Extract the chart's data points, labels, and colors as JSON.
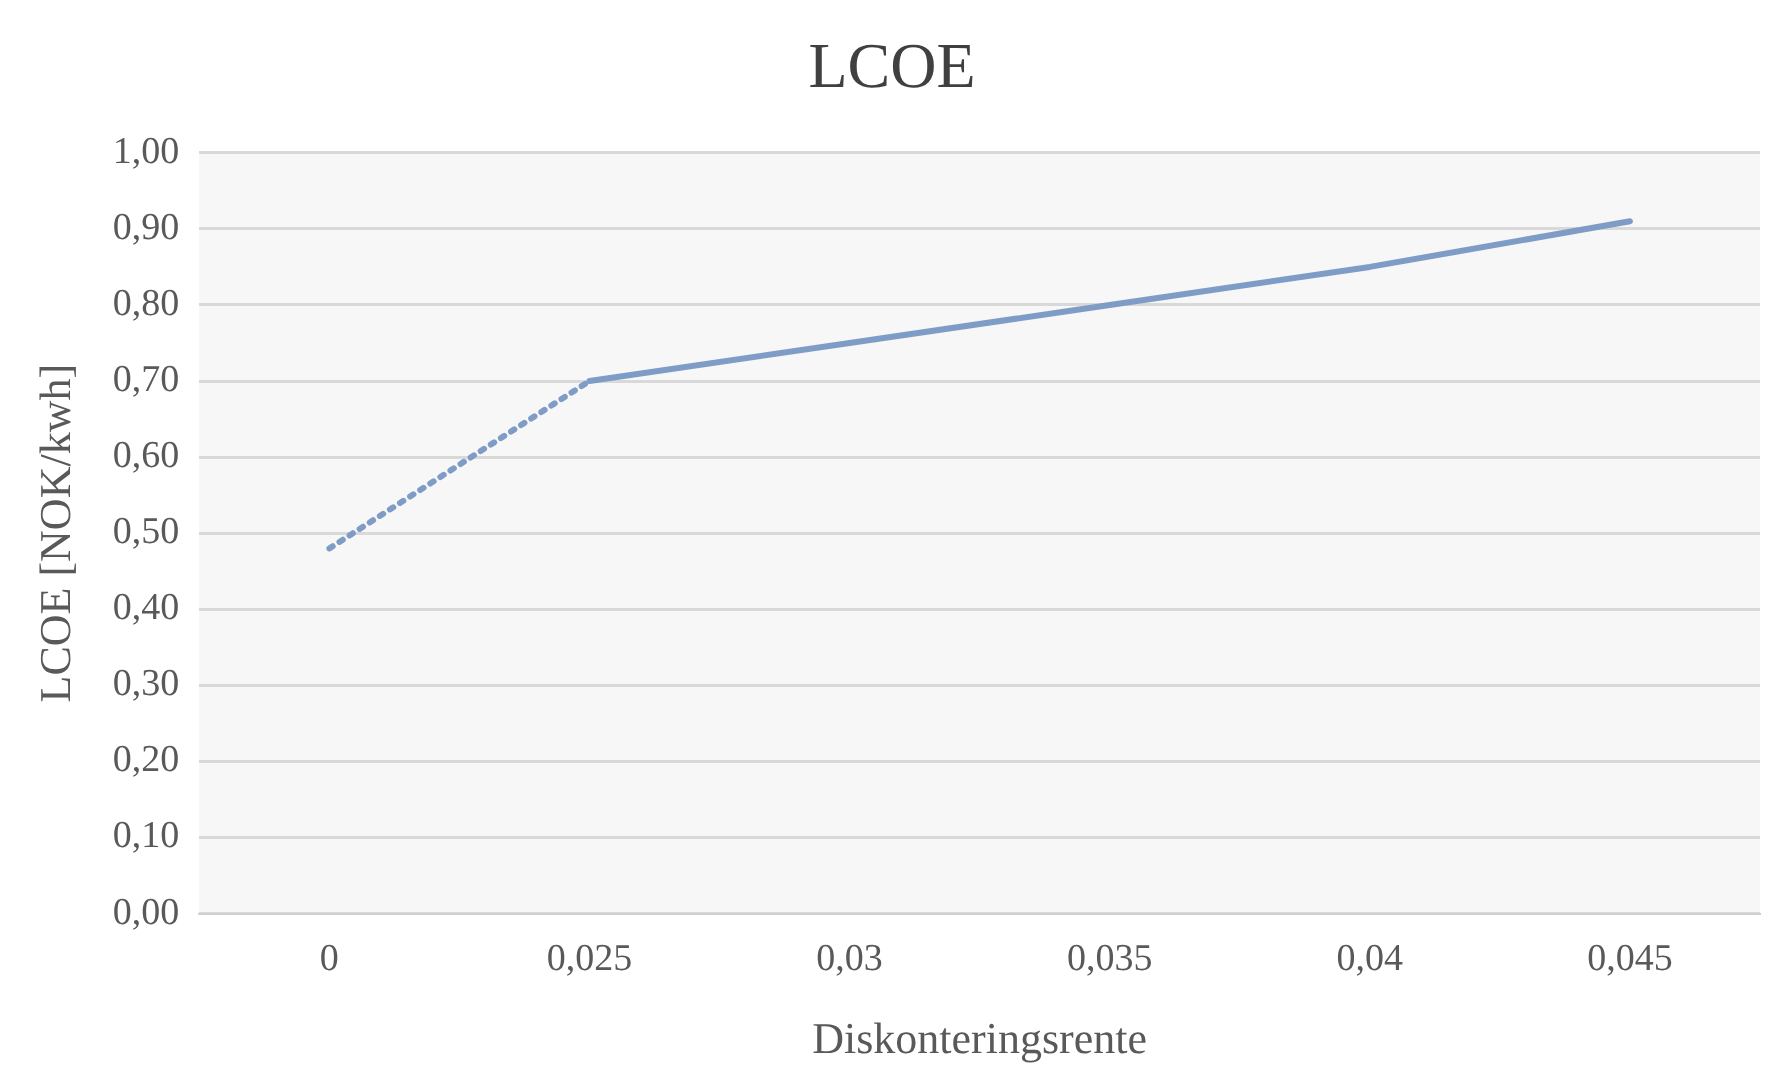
{
  "chart_data": {
    "type": "line",
    "title": "LCOE",
    "xlabel": "Diskonteringsrente",
    "ylabel": "LCOE [NOK/kwh]",
    "categories": [
      "0",
      "0,025",
      "0,03",
      "0,035",
      "0,04",
      "0,045"
    ],
    "series": [
      {
        "color": "#7f9cc6",
        "line_style": "dotted",
        "values": [
          0.48,
          0.7,
          null,
          null,
          null,
          null
        ]
      },
      {
        "color": "#7f9cc6",
        "line_style": "solid",
        "values": [
          null,
          0.7,
          0.75,
          0.8,
          0.85,
          0.91
        ]
      }
    ],
    "ylim": [
      0,
      1
    ],
    "yticks": [
      {
        "value": 0,
        "label": "0,00"
      },
      {
        "value": 0.1,
        "label": "0,10"
      },
      {
        "value": 0.2,
        "label": "0,20"
      },
      {
        "value": 0.3,
        "label": "0,30"
      },
      {
        "value": 0.4,
        "label": "0,40"
      },
      {
        "value": 0.5,
        "label": "0,50"
      },
      {
        "value": 0.6,
        "label": "0,60"
      },
      {
        "value": 0.7,
        "label": "0,70"
      },
      {
        "value": 0.8,
        "label": "0,80"
      },
      {
        "value": 0.9,
        "label": "0,90"
      },
      {
        "value": 1,
        "label": "1,00"
      }
    ],
    "grid": "y",
    "legend": false,
    "marker": "none"
  }
}
